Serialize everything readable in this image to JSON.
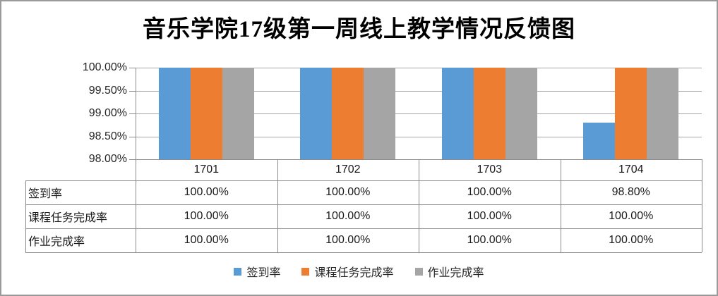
{
  "chart_data": {
    "type": "bar",
    "title": "音乐学院17级第一周线上教学情况反馈图",
    "categories": [
      "1701",
      "1702",
      "1703",
      "1704"
    ],
    "series": [
      {
        "name": "签到率",
        "color": "#5B9BD5",
        "values": [
          100.0,
          100.0,
          100.0,
          98.8
        ]
      },
      {
        "name": "课程任务完成率",
        "color": "#ED7D31",
        "values": [
          100.0,
          100.0,
          100.0,
          100.0
        ]
      },
      {
        "name": "作业完成率",
        "color": "#A5A5A5",
        "values": [
          100.0,
          100.0,
          100.0,
          100.0
        ]
      }
    ],
    "y_axis": {
      "ticks": [
        "100.00%",
        "99.50%",
        "99.00%",
        "98.50%",
        "98.00%"
      ],
      "min": 98.0,
      "max": 100.0
    },
    "grid": true,
    "legend_position": "bottom",
    "data_table": {
      "rows": [
        {
          "label": "签到率",
          "values": [
            "100.00%",
            "100.00%",
            "100.00%",
            "98.80%"
          ]
        },
        {
          "label": "课程任务完成率",
          "values": [
            "100.00%",
            "100.00%",
            "100.00%",
            "100.00%"
          ]
        },
        {
          "label": "作业完成率",
          "values": [
            "100.00%",
            "100.00%",
            "100.00%",
            "100.00%"
          ]
        }
      ]
    }
  }
}
